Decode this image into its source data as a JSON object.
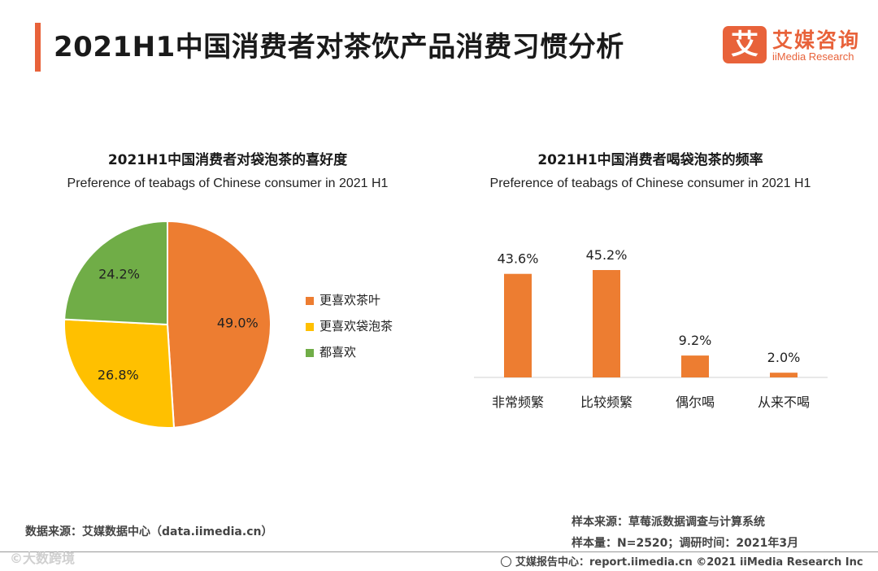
{
  "header": {
    "title": "2021H1中国消费者对茶饮产品消费习惯分析",
    "logo_mark": "艾",
    "logo_cn": "艾媒咨询",
    "logo_en": "iiMedia Research"
  },
  "colors": {
    "accent": "#e8623a",
    "orange": "#ed7d31",
    "yellow": "#ffc000",
    "green": "#70ad47"
  },
  "chart_data": [
    {
      "type": "pie",
      "title": "2021H1中国消费者对袋泡茶的喜好度",
      "subtitle": "Preference of teabags of Chinese consumer in 2021 H1",
      "categories": [
        "更喜欢茶叶",
        "更喜欢袋泡茶",
        "都喜欢"
      ],
      "values": [
        49.0,
        26.8,
        24.2
      ],
      "labels": [
        "49.0%",
        "26.8%",
        "24.2%"
      ],
      "colors": [
        "#ed7d31",
        "#ffc000",
        "#70ad47"
      ],
      "legend": "right"
    },
    {
      "type": "bar",
      "title": "2021H1中国消费者喝袋泡茶的频率",
      "subtitle": "Preference of teabags of Chinese consumer in 2021 H1",
      "categories": [
        "非常频繁",
        "比较频繁",
        "偶尔喝",
        "从来不喝"
      ],
      "values": [
        43.6,
        45.2,
        9.2,
        2.0
      ],
      "labels": [
        "43.6%",
        "45.2%",
        "9.2%",
        "2.0%"
      ],
      "color": "#ed7d31",
      "ylim": [
        0,
        50
      ]
    }
  ],
  "footer": {
    "source_left": "数据来源：艾媒数据中心（data.iimedia.cn）",
    "sample_source": "样本来源：草莓派数据调查与计算系统",
    "sample_size": "样本量：N=2520；调研时间：2021年3月",
    "copyright": "艾媒报告中心：report.iimedia.cn ©2021 iiMedia Research Inc",
    "watermark": "©大数跨境"
  }
}
